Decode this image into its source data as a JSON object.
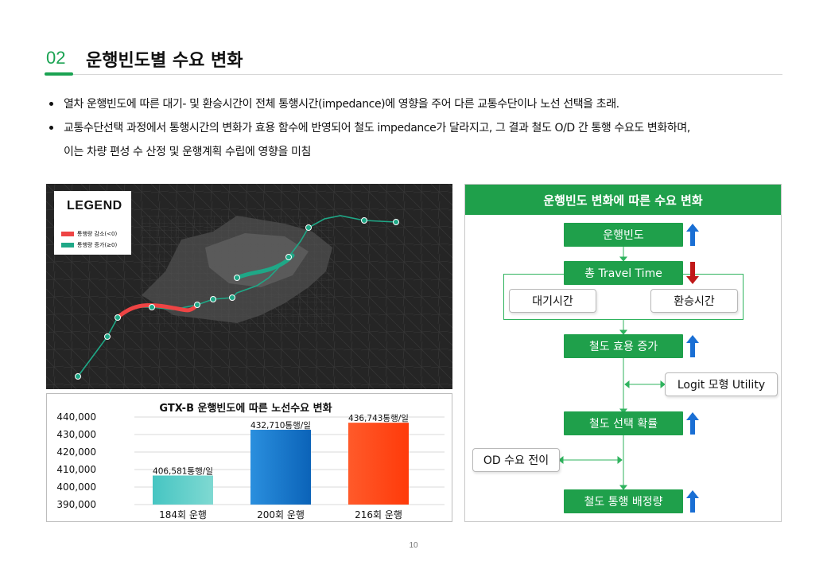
{
  "header": {
    "section_number": "02",
    "title": "운행빈도별 수요 변화"
  },
  "bullets": [
    "열차 운행빈도에 따른 대기- 및 환승시간이 전체 통행시간(impedance)에 영향을 주어 다른 교통수단이나 노선 선택을 초래.",
    "교통수단선택 과정에서 통행시간의 변화가 효용 함수에 반영되어 철도 impedance가 달라지고, 그 결과 철도 O/D 간 통행 수요도 변화하며,",
    "이는 차량 편성 수 산정 및 운행계획 수립에 영향을 미침"
  ],
  "map": {
    "legend_title": "LEGEND",
    "legend_items": [
      {
        "label": "통행량 감소(<0)",
        "color": "#ee4444"
      },
      {
        "label": "통행량 증가(≥0)",
        "color": "#1fa887"
      }
    ]
  },
  "chart": {
    "title": "GTX-B 운행빈도에 따른 노선수요 변화",
    "tick_labels": [
      "440,000",
      "430,000",
      "420,000",
      "410,000",
      "400,000",
      "390,000"
    ],
    "categories": [
      "184회 운행",
      "200회 운행",
      "216회 운행"
    ],
    "data_labels": [
      "406,581통행/일",
      "432,710통행/일",
      "436,743통행/일"
    ]
  },
  "chart_data": {
    "type": "bar",
    "title": "GTX-B 운행빈도에 따른 노선수요 변화",
    "categories": [
      "184회 운행",
      "200회 운행",
      "216회 운행"
    ],
    "values": [
      406581,
      432710,
      436743
    ],
    "ylim": [
      390000,
      440000
    ],
    "ytick_step": 10000,
    "grid": true,
    "bar_colors": [
      "#4ecdc4",
      "#1a7fd4",
      "#ff4a1a"
    ]
  },
  "flow": {
    "header": "운행빈도 변화에 따른 수요 변화",
    "freq": "운행빈도",
    "total_time": "총 Travel Time",
    "wait": "대기시간",
    "transfer": "환승시간",
    "utility": "철도 효용 증가",
    "logit": "Logit 모형 Utility",
    "choice": "철도 선택 확률",
    "od": "OD 수요 전이",
    "assign": "철도 통행 배정량"
  },
  "colors": {
    "accent_green": "#1fa04b",
    "arrow_up": "#1a6fd4",
    "arrow_down": "#c01818"
  },
  "page_number": "10"
}
